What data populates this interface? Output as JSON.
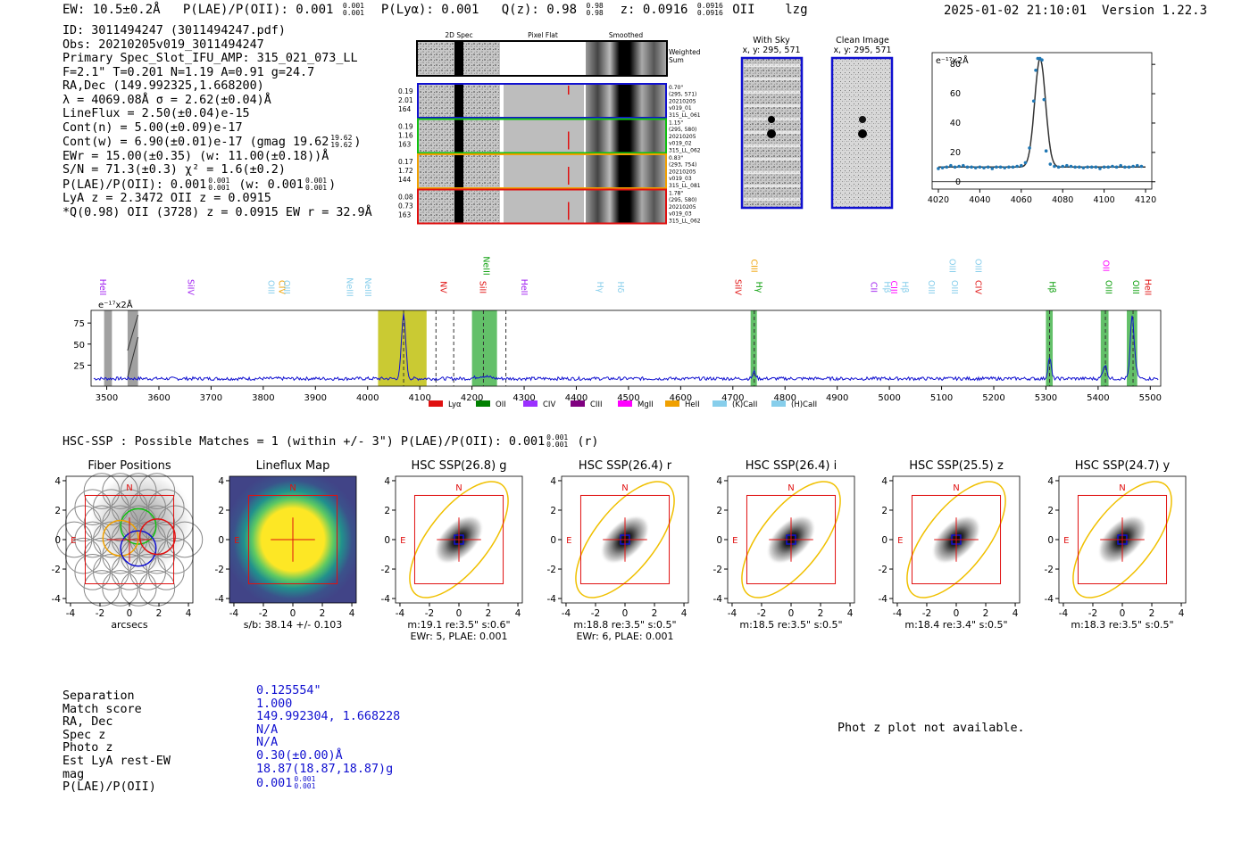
{
  "top_line": {
    "ew": "EW: 10.5±0.2Å",
    "plae_label": "P(LAE)/P(OII): 0.001",
    "plae_hi": "0.001",
    "plae_lo": "0.001",
    "plya": "P(Lyα): 0.001",
    "qz_label": "Q(z): 0.98",
    "qz_hi": "0.98",
    "qz_lo": "0.98",
    "z_label": "z: 0.0916",
    "z_hi": "0.0916",
    "z_lo": "0.0916",
    "line": "OII",
    "flag": "lzg",
    "datetime": "2025-01-02 21:10:01",
    "version": "Version 1.22.3"
  },
  "info": {
    "id": "ID: 3011494247 (3011494247.pdf)",
    "obs": "Obs: 20210205v019_3011494247",
    "primary": "Primary Spec_Slot_IFU_AMP: 315_021_073_LL",
    "fwhm": "F=2.1\"  T=0.201  N=1.19  A=0.91  g=24.7",
    "radec": "RA,Dec (149.992325,1.668200)",
    "lambda": "λ = 4069.08Å  σ = 2.62(±0.04)Å",
    "lineflux": "LineFlux = 2.50(±0.04)e-15",
    "cont_n": "Cont(n) = 5.00(±0.09)e-17",
    "cont_w": "Cont(w) = 6.90(±0.01)e-17 (gmag 19.62",
    "gmag_hi": "19.62",
    "gmag_lo": "19.62",
    "ewr": "EWr = 15.00(±0.35) (w: 11.00(±0.18))Å",
    "sn": "S/N = 71.3(±0.3)  χ² = 1.6(±0.2)",
    "plae": "P(LAE)/P(OII): 0.001",
    "plae_hi": "0.001",
    "plae_lo": "0.001",
    "plae_w": "(w: 0.001",
    "plae_w_hi": "0.001",
    "plae_w_lo": "0.001",
    "lya_z": "LyA z = 2.3472  OII z = 0.0915",
    "q_line": "*Q(0.98) OII (3728) z = 0.0915  EW r = 32.9Å"
  },
  "cutouts": {
    "col_labels": [
      "2D Spec",
      "Pixel Flat",
      "Smoothed"
    ],
    "weighted_sum": [
      "Weighted",
      "Sum"
    ],
    "rows": [
      {
        "left": [
          "0.19",
          "2.01",
          "164"
        ],
        "right": [
          "0.70\"",
          "(295, 571)",
          "20210205",
          "v019_01",
          "315_LL_061"
        ],
        "color": "#1010d0"
      },
      {
        "left": [
          "0.19",
          "1.16",
          "163"
        ],
        "right": [
          "1.15\"",
          "(295, 580)",
          "20210205",
          "v019_02",
          "315_LL_062"
        ],
        "color": "#10c010"
      },
      {
        "left": [
          "0.17",
          "1.72",
          "144"
        ],
        "right": [
          "0.83\"",
          "(293, 754)",
          "20210205",
          "v019_03",
          "315_LL_081"
        ],
        "color": "#f0a000"
      },
      {
        "left": [
          "0.08",
          "0.73",
          "163"
        ],
        "right": [
          "1.78\"",
          "(295, 580)",
          "20210205",
          "v019_03",
          "315_LL_062"
        ],
        "color": "#e01010"
      }
    ],
    "with_sky": {
      "title": "With Sky",
      "coords": "x, y: 295, 571"
    },
    "clean": {
      "title": "Clean Image",
      "coords": "x, y: 295, 571"
    }
  },
  "chart_data": [
    {
      "type": "line",
      "name": "line-zoom",
      "ylabel": "e⁻¹⁷x2Å",
      "xlim": [
        4017,
        4123
      ],
      "ylim": [
        -5,
        88
      ],
      "xticks": [
        4020,
        4040,
        4060,
        4080,
        4100,
        4120
      ],
      "yticks": [
        0,
        20,
        40,
        60,
        80
      ],
      "points_x": [
        4020,
        4022,
        4024,
        4026,
        4028,
        4030,
        4032,
        4034,
        4036,
        4038,
        4040,
        4042,
        4044,
        4046,
        4048,
        4050,
        4052,
        4054,
        4056,
        4058,
        4060,
        4062,
        4064,
        4066,
        4067,
        4068,
        4069,
        4070,
        4071,
        4072,
        4074,
        4076,
        4078,
        4080,
        4082,
        4084,
        4086,
        4088,
        4090,
        4092,
        4094,
        4096,
        4098,
        4100,
        4102,
        4104,
        4106,
        4108,
        4110,
        4112,
        4114,
        4116,
        4118
      ],
      "points_y": [
        9,
        9.5,
        10,
        11,
        10,
        10.5,
        11,
        10,
        10,
        9.5,
        10,
        9.5,
        10,
        9,
        10,
        10,
        9.5,
        10,
        10,
        10.5,
        11,
        13,
        23,
        55,
        76,
        84,
        84,
        83,
        56,
        21,
        12,
        10.5,
        10,
        10.5,
        11,
        10.5,
        10,
        10,
        9.5,
        10,
        10,
        10,
        9,
        10,
        10,
        10.5,
        10,
        11,
        10,
        10,
        10.5,
        11,
        10.5
      ]
    },
    {
      "type": "line",
      "name": "full-spectrum",
      "ylabel": "e⁻¹⁷x2Å",
      "xlim": [
        3470,
        5520
      ],
      "ylim": [
        0,
        90
      ],
      "xticks": [
        3500,
        3600,
        3700,
        3800,
        3900,
        4000,
        4100,
        4200,
        4300,
        4400,
        4500,
        4600,
        4700,
        4800,
        4900,
        5000,
        5100,
        5200,
        5300,
        5400,
        5500
      ],
      "yticks": [
        25,
        50,
        75
      ],
      "features": [
        {
          "x": 4069,
          "y": 85,
          "w": 4
        },
        {
          "x": 4221,
          "y": 15,
          "w": 12
        },
        {
          "x": 4741,
          "y": 17,
          "w": 3
        },
        {
          "x": 5307,
          "y": 34,
          "w": 3
        },
        {
          "x": 5413,
          "y": 25,
          "w": 4
        },
        {
          "x": 5465,
          "y": 58,
          "w": 3
        },
        {
          "x": 5467,
          "y": 38,
          "w": 5
        }
      ],
      "shaded_regions": [
        {
          "x0": 3495,
          "x1": 3510,
          "color": "gray"
        },
        {
          "x0": 3540,
          "x1": 3560,
          "color": "gray"
        },
        {
          "x0": 4020,
          "x1": 4113,
          "color": "olive"
        },
        {
          "x0": 4200,
          "x1": 4248,
          "color": "green"
        },
        {
          "x0": 4734,
          "x1": 4746,
          "color": "green"
        },
        {
          "x0": 5300,
          "x1": 5313,
          "color": "green"
        },
        {
          "x0": 5405,
          "x1": 5420,
          "color": "green"
        },
        {
          "x0": 5455,
          "x1": 5475,
          "color": "green"
        }
      ],
      "dashed_lines": [
        4069,
        4131,
        4165,
        4222,
        4265,
        4741,
        5307,
        5414,
        5467
      ],
      "line_labels": [
        {
          "label": "HeII",
          "x": 3487,
          "color": "#a020f0",
          "row": 2
        },
        {
          "label": "SiIV",
          "x": 3656,
          "color": "#a020f0",
          "row": 1
        },
        {
          "label": "OIII",
          "x": 3810,
          "color": "#87ceeb",
          "row": 1
        },
        {
          "label": "CIV",
          "x": 3830,
          "color": "#f0a000",
          "row": 1
        },
        {
          "label": "OIII",
          "x": 3840,
          "color": "#87ceeb",
          "row": 1
        },
        {
          "label": "NeIII",
          "x": 3960,
          "color": "#87ceeb",
          "row": 1
        },
        {
          "label": "NeIII",
          "x": 3995,
          "color": "#87ceeb",
          "row": 1
        },
        {
          "label": "NeIII",
          "x": 4222,
          "color": "#10a010",
          "row": 0
        },
        {
          "label": "NV",
          "x": 4140,
          "color": "#e01010",
          "row": 1
        },
        {
          "label": "SiII",
          "x": 4215,
          "color": "#e01010",
          "row": 1
        },
        {
          "label": "HeII",
          "x": 4295,
          "color": "#a020f0",
          "row": 2
        },
        {
          "label": "Hγ",
          "x": 4440,
          "color": "#87ceeb",
          "row": 1
        },
        {
          "label": "Hδ",
          "x": 4480,
          "color": "#87ceeb",
          "row": 1
        },
        {
          "label": "SiIV",
          "x": 4705,
          "color": "#e01010",
          "row": 1
        },
        {
          "label": "CIII",
          "x": 4735,
          "color": "#f0a000",
          "row": 0
        },
        {
          "label": "Hγ",
          "x": 4745,
          "color": "#10a010",
          "row": 1
        },
        {
          "label": "CII",
          "x": 4965,
          "color": "#a020f0",
          "row": 1
        },
        {
          "label": "Hβ",
          "x": 4990,
          "color": "#87ceeb",
          "row": 1
        },
        {
          "label": "CIII",
          "x": 5003,
          "color": "#ff00ff",
          "row": 1
        },
        {
          "label": "Hβ",
          "x": 5025,
          "color": "#87ceeb",
          "row": 1
        },
        {
          "label": "OIII",
          "x": 5075,
          "color": "#87ceeb",
          "row": 1
        },
        {
          "label": "OIII",
          "x": 5115,
          "color": "#87ceeb",
          "row": 0
        },
        {
          "label": "OIII",
          "x": 5165,
          "color": "#87ceeb",
          "row": 0
        },
        {
          "label": "OIII",
          "x": 5120,
          "color": "#87ceeb",
          "row": 1
        },
        {
          "label": "CIV",
          "x": 5165,
          "color": "#e01010",
          "row": 1
        },
        {
          "label": "Hβ",
          "x": 5307,
          "color": "#10a010",
          "row": 1
        },
        {
          "label": "OII",
          "x": 5410,
          "color": "#ff00ff",
          "row": 0
        },
        {
          "label": "OIII",
          "x": 5415,
          "color": "#10a010",
          "row": 1
        },
        {
          "label": "OIII",
          "x": 5467,
          "color": "#10a010",
          "row": 1
        },
        {
          "label": "HeII",
          "x": 5490,
          "color": "#e01010",
          "row": 1
        }
      ],
      "legend": [
        {
          "label": "Lyα",
          "color": "#e01010"
        },
        {
          "label": "OII",
          "color": "#008000"
        },
        {
          "label": "CIV",
          "color": "#9b30ff"
        },
        {
          "label": "CIII",
          "color": "#800080"
        },
        {
          "label": "MgII",
          "color": "#ff00ff"
        },
        {
          "label": "HeII",
          "color": "#f0a000"
        },
        {
          "label": "(K)CaII",
          "color": "#87ceeb"
        },
        {
          "label": "(H)CaII",
          "color": "#87ceeb"
        }
      ]
    }
  ],
  "hsc": {
    "header": "HSC-SSP : Possible Matches = 1 (within +/- 3\")  P(LAE)/P(OII): 0.001",
    "header_hi": "0.001",
    "header_lo": "0.001",
    "header_tail": "(r)",
    "ticks": [
      "-4",
      "-2",
      "0",
      "2",
      "4"
    ],
    "panels": [
      {
        "title": "Fiber Positions",
        "caption1": "arcsecs",
        "caption2": ""
      },
      {
        "title": "Lineflux Map",
        "caption1": "s/b: 38.14 +/- 0.103",
        "caption2": ""
      },
      {
        "title": "HSC SSP(26.8) g",
        "caption1": "m:19.1  re:3.5\"  s:0.6\"",
        "caption2": "EWr: 5, PLAE: 0.001"
      },
      {
        "title": "HSC SSP(26.4) r",
        "caption1": "m:18.8  re:3.5\"  s:0.5\"",
        "caption2": "EWr: 6, PLAE: 0.001"
      },
      {
        "title": "HSC SSP(26.4) i",
        "caption1": "m:18.5  re:3.5\"  s:0.5\"",
        "caption2": ""
      },
      {
        "title": "HSC SSP(25.5) z",
        "caption1": "m:18.4  re:3.4\"  s:0.5\"",
        "caption2": ""
      },
      {
        "title": "HSC SSP(24.7) y",
        "caption1": "m:18.3  re:3.5\"  s:0.5\"",
        "caption2": ""
      }
    ],
    "n_label": "N",
    "e_label": "E"
  },
  "match": {
    "labels": [
      "Separation",
      "Match score",
      "RA, Dec",
      "Spec z",
      "Photo z",
      "Est LyA rest-EW",
      "mag",
      "P(LAE)/P(OII)"
    ],
    "values": [
      "0.125554\"",
      "1.000",
      "149.992304, 1.668228",
      "N/A",
      "N/A",
      "0.30(±0.00)Å",
      "18.87(18.87,18.87)g",
      "0.001"
    ],
    "plae_hi": "0.001",
    "plae_lo": "0.001",
    "photz_msg": "Phot z plot not available."
  }
}
